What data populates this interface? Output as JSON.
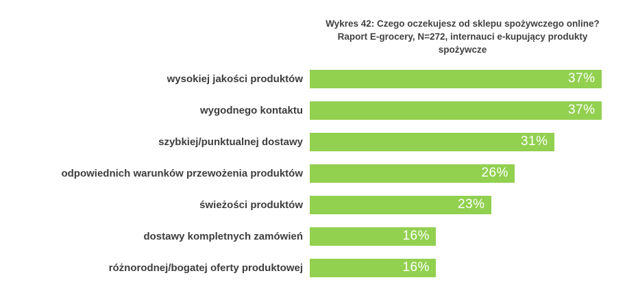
{
  "title": {
    "lines": [
      "Wykres 42: Czego oczekujesz od sklepu spożywczego online?",
      "Raport E-grocery, N=272, internauci e-kupujący produkty",
      "spożywcze"
    ]
  },
  "chart_data": {
    "type": "bar",
    "orientation": "horizontal",
    "title": "Wykres 42: Czego oczekujesz od sklepu spożywczego online? Raport E-grocery, N=272, internauci e-kupujący produkty spożywcze",
    "categories": [
      "wysokiej jakości produktów",
      "wygodnego kontaktu",
      "szybkiej/punktualnej dostawy",
      "odpowiednich warunków przewożenia produktów",
      "świeżości produktów",
      "dostawy kompletnych zamówień",
      "różnorodnej/bogatej oferty produktowej"
    ],
    "values": [
      37,
      37,
      31,
      26,
      23,
      16,
      16
    ],
    "value_suffix": "%",
    "xlim": [
      0,
      40
    ],
    "bar_color": "#92d050",
    "value_label_color": "#ffffff",
    "grid": false,
    "legend": false,
    "value_labels_position": "inside-end"
  }
}
